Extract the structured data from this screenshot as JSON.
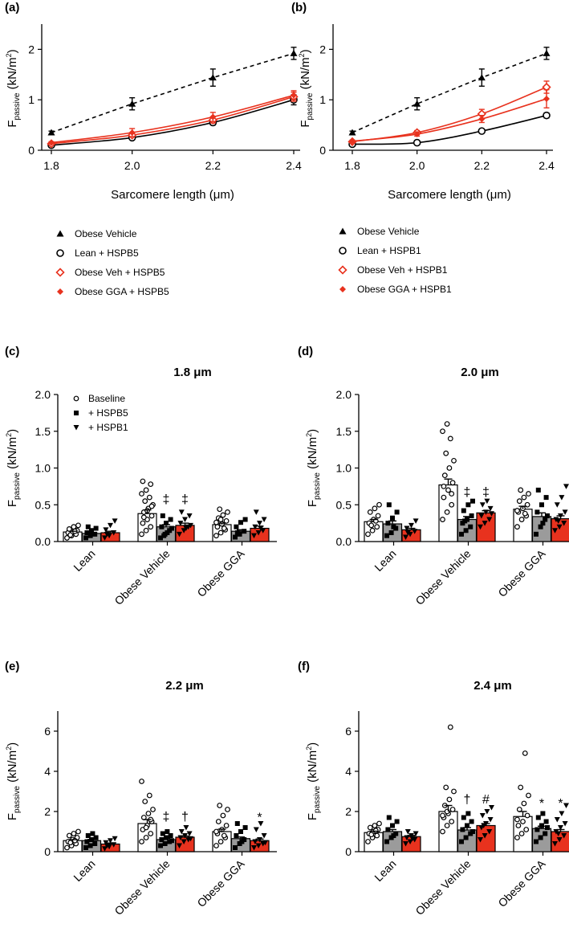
{
  "chart_data": [
    {
      "panel": "(a)",
      "type": "line",
      "xlabel": "Sarcomere length (μm)",
      "ylabel_main": "F",
      "ylabel_sub": "passive",
      "ylabel_unit": " (kN/m",
      "ylabel_sup": "2",
      "ylabel_close": ")",
      "x": [
        1.8,
        2.0,
        2.2,
        2.4
      ],
      "xlim": [
        1.8,
        2.4
      ],
      "ylim": [
        0,
        2.5
      ],
      "xticks": [
        "1.8",
        "2.0",
        "2.2",
        "2.4"
      ],
      "yticks": [
        "0",
        "1",
        "2"
      ],
      "series": [
        {
          "name": "Obese Vehicle",
          "values": [
            0.35,
            0.92,
            1.44,
            1.92
          ],
          "err": [
            0.03,
            0.12,
            0.17,
            0.12
          ],
          "color": "#000000",
          "marker": "triangle",
          "dashed": true
        },
        {
          "name": "Lean + HSPB5",
          "values": [
            0.1,
            0.25,
            0.55,
            1.0
          ],
          "err": [
            0.02,
            0.03,
            0.05,
            0.1
          ],
          "color": "#000000",
          "marker": "circle",
          "dashed": false
        },
        {
          "name": "Obese Veh + HSPB5",
          "values": [
            0.13,
            0.3,
            0.6,
            1.06
          ],
          "err": [
            0.02,
            0.04,
            0.06,
            0.09
          ],
          "color": "#e8321e",
          "marker": "diamond-open",
          "dashed": false
        },
        {
          "name": "Obese GGA + HSPB5",
          "values": [
            0.15,
            0.35,
            0.66,
            1.09
          ],
          "err": [
            0.02,
            0.08,
            0.09,
            0.09
          ],
          "color": "#e8321e",
          "marker": "diamond",
          "dashed": false
        }
      ]
    },
    {
      "panel": "(b)",
      "type": "line",
      "xlabel": "Sarcomere length (μm)",
      "ylabel_main": "F",
      "ylabel_sub": "passive",
      "ylabel_unit": " (kN/m",
      "ylabel_sup": "2",
      "ylabel_close": ")",
      "x": [
        1.8,
        2.0,
        2.2,
        2.4
      ],
      "xlim": [
        1.8,
        2.4
      ],
      "ylim": [
        0,
        2.5
      ],
      "xticks": [
        "1.8",
        "2.0",
        "2.2",
        "2.4"
      ],
      "yticks": [
        "0",
        "1",
        "2"
      ],
      "series": [
        {
          "name": "Obese Vehicle",
          "values": [
            0.35,
            0.92,
            1.44,
            1.92
          ],
          "err": [
            0.03,
            0.12,
            0.17,
            0.12
          ],
          "color": "#000000",
          "marker": "triangle",
          "dashed": true
        },
        {
          "name": "Lean + HSPB1",
          "values": [
            0.12,
            0.15,
            0.38,
            0.69
          ],
          "err": [
            0.02,
            0.02,
            0.03,
            0.05
          ],
          "color": "#000000",
          "marker": "circle",
          "dashed": false
        },
        {
          "name": "Obese Veh + HSPB1",
          "values": [
            0.17,
            0.35,
            0.72,
            1.25
          ],
          "err": [
            0.02,
            0.04,
            0.09,
            0.12
          ],
          "color": "#e8321e",
          "marker": "diamond-open",
          "dashed": false
        },
        {
          "name": "Obese GGA + HSPB1",
          "values": [
            0.18,
            0.32,
            0.62,
            1.02
          ],
          "err": [
            0.02,
            0.04,
            0.07,
            0.18
          ],
          "color": "#e8321e",
          "marker": "diamond",
          "dashed": false
        }
      ]
    },
    {
      "panel": "(c)",
      "type": "bar",
      "title": "1.8 μm",
      "ylabel_main": "F",
      "ylabel_sub": "passive",
      "ylabel_unit": " (kN/m",
      "ylabel_sup": "2",
      "ylabel_close": ")",
      "categories": [
        "Lean",
        "Obese Vehicle",
        "Obese GGA"
      ],
      "ylim": [
        0,
        2.0
      ],
      "yticks": [
        "0.0",
        "0.5",
        "1.0",
        "1.5",
        "2.0"
      ],
      "legend": [
        "Baseline",
        "+ HSPB5",
        "+ HSPB1"
      ],
      "series": [
        {
          "name": "Baseline",
          "values": [
            0.13,
            0.38,
            0.23
          ],
          "err": [
            0.01,
            0.05,
            0.02
          ],
          "points": [
            [
              0.05,
              0.08,
              0.1,
              0.12,
              0.13,
              0.15,
              0.17,
              0.2,
              0.22,
              0.09,
              0.14
            ],
            [
              0.1,
              0.15,
              0.2,
              0.25,
              0.3,
              0.35,
              0.4,
              0.45,
              0.5,
              0.55,
              0.6,
              0.65,
              0.7,
              0.78,
              0.82,
              0.42,
              0.48,
              0.33
            ],
            [
              0.08,
              0.12,
              0.16,
              0.2,
              0.24,
              0.28,
              0.32,
              0.36,
              0.4,
              0.44,
              0.18,
              0.26,
              0.3
            ]
          ]
        },
        {
          "name": "+ HSPB5",
          "values": [
            0.11,
            0.2,
            0.14
          ],
          "err": [
            0.01,
            0.03,
            0.02
          ],
          "points": [
            [
              0.05,
              0.08,
              0.1,
              0.12,
              0.15,
              0.18,
              0.2
            ],
            [
              0.05,
              0.1,
              0.15,
              0.2,
              0.25,
              0.3,
              0.35,
              0.12,
              0.18,
              0.08
            ],
            [
              0.06,
              0.1,
              0.14,
              0.2,
              0.26,
              0.3,
              0.12
            ]
          ]
        },
        {
          "name": "+ HSPB1",
          "values": [
            0.12,
            0.22,
            0.18
          ],
          "err": [
            0.02,
            0.03,
            0.03
          ],
          "points": [
            [
              0.05,
              0.08,
              0.12,
              0.16,
              0.22,
              0.28,
              0.1
            ],
            [
              0.1,
              0.15,
              0.2,
              0.25,
              0.3,
              0.35,
              0.4,
              0.18,
              0.22
            ],
            [
              0.08,
              0.12,
              0.15,
              0.2,
              0.25,
              0.3,
              0.4,
              0.18
            ]
          ]
        }
      ],
      "annotations": [
        {
          "category": 1,
          "series": 1,
          "text": "‡",
          "y": 0.52
        },
        {
          "category": 1,
          "series": 2,
          "text": "‡",
          "y": 0.52
        }
      ]
    },
    {
      "panel": "(d)",
      "type": "bar",
      "title": "2.0 μm",
      "ylabel_main": "F",
      "ylabel_sub": "passive",
      "ylabel_unit": " (kN/m",
      "ylabel_sup": "2",
      "ylabel_close": ")",
      "categories": [
        "Lean",
        "Obese Vehicle",
        "Obese GGA"
      ],
      "ylim": [
        0,
        2.0
      ],
      "yticks": [
        "0.0",
        "0.5",
        "1.0",
        "1.5",
        "2.0"
      ],
      "legend": [],
      "series": [
        {
          "name": "Baseline",
          "values": [
            0.27,
            0.77,
            0.44
          ],
          "err": [
            0.03,
            0.08,
            0.04
          ],
          "points": [
            [
              0.1,
              0.15,
              0.2,
              0.25,
              0.3,
              0.35,
              0.4,
              0.45,
              0.5,
              0.22,
              0.28
            ],
            [
              0.3,
              0.4,
              0.5,
              0.6,
              0.7,
              0.8,
              0.9,
              1.0,
              1.1,
              1.2,
              1.4,
              1.5,
              1.6,
              0.65,
              0.75
            ],
            [
              0.2,
              0.3,
              0.35,
              0.4,
              0.45,
              0.5,
              0.55,
              0.6,
              0.65,
              0.7,
              0.38,
              0.42
            ]
          ]
        },
        {
          "name": "+ HSPB5",
          "values": [
            0.24,
            0.3,
            0.34
          ],
          "err": [
            0.04,
            0.04,
            0.05
          ],
          "points": [
            [
              0.08,
              0.12,
              0.18,
              0.25,
              0.32,
              0.4,
              0.5,
              0.2
            ],
            [
              0.1,
              0.15,
              0.2,
              0.25,
              0.3,
              0.35,
              0.42,
              0.5,
              0.55,
              0.28
            ],
            [
              0.1,
              0.2,
              0.3,
              0.4,
              0.5,
              0.6,
              0.7,
              0.25,
              0.35
            ]
          ]
        },
        {
          "name": "+ HSPB1",
          "values": [
            0.16,
            0.39,
            0.31
          ],
          "err": [
            0.02,
            0.03,
            0.04
          ],
          "points": [
            [
              0.06,
              0.1,
              0.14,
              0.18,
              0.22,
              0.28,
              0.12
            ],
            [
              0.2,
              0.25,
              0.3,
              0.35,
              0.4,
              0.45,
              0.5,
              0.55,
              0.38
            ],
            [
              0.15,
              0.2,
              0.25,
              0.3,
              0.35,
              0.4,
              0.5,
              0.6,
              0.75,
              0.28
            ]
          ]
        }
      ],
      "annotations": [
        {
          "category": 1,
          "series": 1,
          "text": "‡",
          "y": 0.62
        },
        {
          "category": 1,
          "series": 2,
          "text": "‡",
          "y": 0.62
        }
      ]
    },
    {
      "panel": "(e)",
      "type": "bar",
      "title": "2.2 μm",
      "ylabel_main": "F",
      "ylabel_sub": "passive",
      "ylabel_unit": " (kN/m",
      "ylabel_sup": "2",
      "ylabel_close": ")",
      "categories": [
        "Lean",
        "Obese Vehicle",
        "Obese GGA"
      ],
      "ylim": [
        0,
        7
      ],
      "yticks": [
        "0",
        "2",
        "4",
        "6"
      ],
      "legend": [],
      "series": [
        {
          "name": "Baseline",
          "values": [
            0.55,
            1.4,
            1.0
          ],
          "err": [
            0.05,
            0.2,
            0.12
          ],
          "points": [
            [
              0.2,
              0.3,
              0.4,
              0.5,
              0.6,
              0.7,
              0.8,
              0.9,
              1.0,
              0.45,
              0.55
            ],
            [
              0.5,
              0.7,
              0.9,
              1.1,
              1.3,
              1.5,
              1.7,
              1.9,
              2.1,
              2.5,
              2.8,
              3.5,
              1.2,
              1.6
            ],
            [
              0.3,
              0.5,
              0.7,
              0.9,
              1.1,
              1.3,
              1.5,
              1.8,
              2.1,
              2.3,
              0.8,
              1.0
            ]
          ]
        },
        {
          "name": "+ HSPB5",
          "values": [
            0.55,
            0.6,
            0.65
          ],
          "err": [
            0.06,
            0.06,
            0.08
          ],
          "points": [
            [
              0.2,
              0.3,
              0.4,
              0.5,
              0.6,
              0.7,
              0.8,
              0.9
            ],
            [
              0.3,
              0.4,
              0.5,
              0.6,
              0.7,
              0.8,
              0.9,
              1.0,
              0.55
            ],
            [
              0.2,
              0.4,
              0.6,
              0.8,
              1.0,
              1.2,
              1.4,
              0.5
            ]
          ]
        },
        {
          "name": "+ HSPB1",
          "values": [
            0.38,
            0.72,
            0.55
          ],
          "err": [
            0.05,
            0.06,
            0.08
          ],
          "points": [
            [
              0.15,
              0.25,
              0.35,
              0.45,
              0.55,
              0.65,
              0.3
            ],
            [
              0.3,
              0.5,
              0.6,
              0.7,
              0.8,
              0.9,
              1.0,
              1.2,
              0.65
            ],
            [
              0.2,
              0.3,
              0.4,
              0.5,
              0.6,
              0.8,
              1.1,
              1.4,
              0.45
            ]
          ]
        }
      ],
      "annotations": [
        {
          "category": 1,
          "series": 1,
          "text": "‡",
          "y": 1.55
        },
        {
          "category": 1,
          "series": 2,
          "text": "†",
          "y": 1.55
        },
        {
          "category": 2,
          "series": 2,
          "text": "*",
          "y": 1.5
        }
      ]
    },
    {
      "panel": "(f)",
      "type": "bar",
      "title": "2.4 μm",
      "ylabel_main": "F",
      "ylabel_sub": "passive",
      "ylabel_unit": " (kN/m",
      "ylabel_sup": "2",
      "ylabel_close": ")",
      "categories": [
        "Lean",
        "Obese Vehicle",
        "Obese GGA"
      ],
      "ylim": [
        0,
        7
      ],
      "yticks": [
        "0",
        "2",
        "4",
        "6"
      ],
      "legend": [],
      "series": [
        {
          "name": "Baseline",
          "values": [
            0.95,
            2.0,
            1.75
          ],
          "err": [
            0.07,
            0.3,
            0.25
          ],
          "points": [
            [
              0.5,
              0.7,
              0.8,
              0.9,
              1.0,
              1.1,
              1.2,
              1.3,
              1.4,
              0.85,
              1.05
            ],
            [
              1.0,
              1.3,
              1.5,
              1.7,
              1.9,
              2.1,
              2.3,
              2.6,
              3.0,
              3.2,
              6.2,
              1.8,
              2.0
            ],
            [
              0.7,
              0.9,
              1.1,
              1.3,
              1.5,
              1.8,
              2.1,
              2.4,
              2.8,
              3.2,
              4.9,
              1.6
            ]
          ]
        },
        {
          "name": "+ HSPB5",
          "values": [
            1.0,
            1.08,
            1.15
          ],
          "err": [
            0.1,
            0.12,
            0.12
          ],
          "points": [
            [
              0.5,
              0.7,
              0.9,
              1.1,
              1.3,
              1.5,
              1.7,
              0.8
            ],
            [
              0.5,
              0.7,
              0.9,
              1.1,
              1.3,
              1.5,
              1.7,
              1.9,
              1.0
            ],
            [
              0.5,
              0.7,
              0.9,
              1.1,
              1.3,
              1.5,
              1.7,
              1.9,
              1.2
            ]
          ]
        },
        {
          "name": "+ HSPB1",
          "values": [
            0.75,
            1.3,
            1.0
          ],
          "err": [
            0.06,
            0.1,
            0.1
          ],
          "points": [
            [
              0.4,
              0.5,
              0.6,
              0.7,
              0.8,
              0.9,
              1.0,
              0.65
            ],
            [
              0.6,
              0.8,
              1.0,
              1.2,
              1.4,
              1.6,
              1.8,
              2.0,
              2.2,
              1.3
            ],
            [
              0.4,
              0.6,
              0.8,
              1.0,
              1.2,
              1.4,
              1.6,
              1.9,
              2.3,
              0.9
            ]
          ]
        }
      ],
      "annotations": [
        {
          "category": 1,
          "series": 1,
          "text": "†",
          "y": 2.4
        },
        {
          "category": 1,
          "series": 2,
          "text": "#",
          "y": 2.4
        },
        {
          "category": 2,
          "series": 1,
          "text": "*",
          "y": 2.2
        },
        {
          "category": 2,
          "series": 2,
          "text": "*",
          "y": 2.2
        }
      ]
    }
  ],
  "legends": {
    "a": [
      "Obese Vehicle",
      "Lean + HSPB5",
      "Obese Veh + HSPB5",
      "Obese GGA + HSPB5"
    ],
    "b": [
      "Obese Vehicle",
      "Lean + HSPB1",
      "Obese Veh + HSPB1",
      "Obese GGA + HSPB1"
    ]
  },
  "colors": {
    "red": "#e8321e",
    "gray": "#9b9b9b",
    "black": "#000000"
  }
}
